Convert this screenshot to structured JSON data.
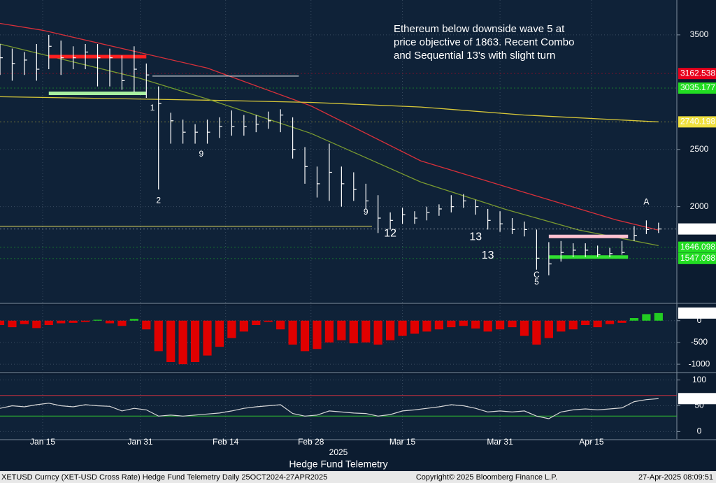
{
  "chart_data": [
    {
      "type": "ohlc",
      "annotation": [
        "Ethereum below downside wave 5 at",
        "price objective of 1863.  Recent Combo",
        "and Sequential 13's with slight turn"
      ],
      "xlim": [
        "2025-01-08",
        "2025-04-29"
      ],
      "xticks": [
        {
          "value": "2025-01-15",
          "label": "Jan 15"
        },
        {
          "value": "2025-01-31",
          "label": "Jan 31"
        },
        {
          "value": "2025-02-14",
          "label": "Feb 14"
        },
        {
          "value": "2025-02-28",
          "label": "Feb 28"
        },
        {
          "value": "2025-03-15",
          "label": "Mar 15"
        },
        {
          "value": "2025-03-31",
          "label": "Mar 31"
        },
        {
          "value": "2025-04-15",
          "label": "Apr 15"
        }
      ],
      "year_label": "2025",
      "x_title": "Hedge Fund Telemetry",
      "ylim": [
        1180,
        3780
      ],
      "yticks": [
        3500,
        2500,
        2000
      ],
      "color": "#ffffff",
      "x": [
        "2025-01-08",
        "2025-01-10",
        "2025-01-12",
        "2025-01-14",
        "2025-01-16",
        "2025-01-18",
        "2025-01-20",
        "2025-01-22",
        "2025-01-24",
        "2025-01-26",
        "2025-01-28",
        "2025-01-30",
        "2025-02-01",
        "2025-02-03",
        "2025-02-05",
        "2025-02-07",
        "2025-02-09",
        "2025-02-11",
        "2025-02-13",
        "2025-02-15",
        "2025-02-17",
        "2025-02-19",
        "2025-02-21",
        "2025-02-23",
        "2025-02-25",
        "2025-02-27",
        "2025-03-01",
        "2025-03-03",
        "2025-03-05",
        "2025-03-07",
        "2025-03-09",
        "2025-03-11",
        "2025-03-13",
        "2025-03-15",
        "2025-03-17",
        "2025-03-19",
        "2025-03-21",
        "2025-03-23",
        "2025-03-25",
        "2025-03-27",
        "2025-03-29",
        "2025-03-31",
        "2025-04-02",
        "2025-04-04",
        "2025-04-06",
        "2025-04-08",
        "2025-04-10",
        "2025-04-12",
        "2025-04-14",
        "2025-04-16",
        "2025-04-18",
        "2025-04-20",
        "2025-04-22",
        "2025-04-24",
        "2025-04-26"
      ],
      "high": [
        3420,
        3380,
        3350,
        3420,
        3500,
        3450,
        3400,
        3420,
        3420,
        3380,
        3320,
        3400,
        3250,
        3050,
        2820,
        2760,
        2720,
        2760,
        2780,
        2840,
        2800,
        2800,
        2830,
        2850,
        2780,
        2520,
        2350,
        2550,
        2350,
        2300,
        2200,
        2100,
        1950,
        1990,
        1960,
        2000,
        2020,
        2100,
        2110,
        2060,
        1980,
        1960,
        1900,
        1870,
        1800,
        1690,
        1700,
        1680,
        1680,
        1660,
        1640,
        1700,
        1830,
        1880,
        1860
      ],
      "low": [
        3150,
        3100,
        3150,
        3100,
        3200,
        3150,
        3200,
        3200,
        3050,
        3050,
        3020,
        3000,
        2950,
        2150,
        2550,
        2550,
        2550,
        2550,
        2600,
        2620,
        2620,
        2650,
        2680,
        2650,
        2420,
        2200,
        2080,
        2050,
        2000,
        2050,
        1980,
        1770,
        1800,
        1850,
        1850,
        1880,
        1920,
        1950,
        1990,
        1930,
        1800,
        1780,
        1760,
        1740,
        1450,
        1400,
        1520,
        1560,
        1560,
        1560,
        1560,
        1580,
        1700,
        1760,
        1770
      ],
      "close": [
        3300,
        3250,
        3280,
        3200,
        3400,
        3300,
        3300,
        3350,
        3300,
        3300,
        3100,
        3200,
        3150,
        2900,
        2750,
        2650,
        2650,
        2650,
        2700,
        2700,
        2700,
        2720,
        2750,
        2800,
        2500,
        2350,
        2200,
        2300,
        2200,
        2150,
        2050,
        1900,
        1880,
        1930,
        1900,
        1950,
        1980,
        2000,
        2050,
        2000,
        1880,
        1850,
        1800,
        1800,
        1550,
        1500,
        1600,
        1620,
        1620,
        1580,
        1590,
        1600,
        1750,
        1800,
        1805
      ],
      "overlays": [
        {
          "color": "#d8303a",
          "x": [
            "2025-01-08",
            "2025-01-15",
            "2025-02-11",
            "2025-02-28",
            "2025-03-18",
            "2025-04-04",
            "2025-04-19",
            "2025-04-26"
          ],
          "values": [
            3600,
            3540,
            3210,
            2880,
            2400,
            2125,
            1885,
            1795
          ]
        },
        {
          "color": "#d8c838",
          "x": [
            "2025-01-08",
            "2025-02-11",
            "2025-02-28",
            "2025-03-18",
            "2025-04-04",
            "2025-04-26"
          ],
          "values": [
            2960,
            2930,
            2910,
            2870,
            2800,
            2740
          ]
        },
        {
          "color": "#7a9a30",
          "x": [
            "2025-01-08",
            "2025-01-31",
            "2025-02-11",
            "2025-02-28",
            "2025-03-18",
            "2025-04-01",
            "2025-04-13",
            "2025-04-26"
          ],
          "values": [
            3420,
            3120,
            2940,
            2640,
            2215,
            1975,
            1795,
            1660
          ]
        }
      ],
      "bands": [
        {
          "from": "2025-01-16",
          "to": "2025-02-01",
          "price": 3310,
          "color": "#ff2020",
          "width": 5
        },
        {
          "from": "2025-01-16",
          "to": "2025-02-01",
          "price": 2990,
          "color": "#a8f0a0",
          "width": 5
        },
        {
          "from": "2025-02-02",
          "to": "2025-02-26",
          "price": 3140,
          "color": "#ffffff",
          "width": 1
        },
        {
          "from": "2025-01-08",
          "to": "2025-03-10",
          "price": 1830,
          "color": "#e8e060",
          "width": 1
        },
        {
          "from": "2025-04-08",
          "to": "2025-04-21",
          "price": 1740,
          "color": "#ffc0d0",
          "width": 5
        },
        {
          "from": "2025-04-08",
          "to": "2025-04-21",
          "price": 1560,
          "color": "#30e030",
          "width": 5
        }
      ],
      "levels": [
        {
          "value": 3162.538,
          "color": "#e8001c"
        },
        {
          "value": 3035.177,
          "color": "#22dd22"
        },
        {
          "value": 2740.198,
          "color": "#f0e040"
        },
        {
          "value": 1805.05,
          "label": "1805.050",
          "color": "#ffffff"
        },
        {
          "value": 1646.098,
          "color": "#22dd22"
        },
        {
          "value": 1547.098,
          "color": "#22dd22"
        }
      ],
      "counts": [
        {
          "text": "1",
          "date": "2025-02-02",
          "price": 2860,
          "color": "#22cc22"
        },
        {
          "text": "9",
          "date": "2025-02-10",
          "price": 2458,
          "color": "#22cc22"
        },
        {
          "text": "2",
          "date": "2025-02-03",
          "price": 2050,
          "color": "#22cc22"
        },
        {
          "text": "9",
          "date": "2025-03-09",
          "price": 1950,
          "color": "#e02020"
        },
        {
          "text": "12",
          "date": "2025-03-13",
          "price": 1765,
          "color": "#e040e0"
        },
        {
          "text": "13",
          "date": "2025-03-27",
          "price": 1735,
          "color": "#e040e0"
        },
        {
          "text": "13",
          "date": "2025-03-29",
          "price": 1572,
          "color": "#e040e0"
        },
        {
          "text": "C",
          "date": "2025-04-06",
          "price": 1400,
          "color": "#20b0e0"
        },
        {
          "text": "5",
          "date": "2025-04-06",
          "price": 1340,
          "color": "#f0e040"
        },
        {
          "text": "A",
          "date": "2025-04-24",
          "price": 2040,
          "color": "#f0e040"
        }
      ]
    },
    {
      "type": "bar",
      "ylim": [
        -1143,
        333
      ],
      "yticks": [
        0,
        -500,
        -1000
      ],
      "colors": {
        "positive": "#22cc22",
        "negative": "#e00000"
      },
      "x": [
        "2025-01-08",
        "2025-01-10",
        "2025-01-12",
        "2025-01-14",
        "2025-01-16",
        "2025-01-18",
        "2025-01-20",
        "2025-01-22",
        "2025-01-24",
        "2025-01-26",
        "2025-01-28",
        "2025-01-30",
        "2025-02-01",
        "2025-02-03",
        "2025-02-05",
        "2025-02-07",
        "2025-02-09",
        "2025-02-11",
        "2025-02-13",
        "2025-02-15",
        "2025-02-17",
        "2025-02-19",
        "2025-02-21",
        "2025-02-23",
        "2025-02-25",
        "2025-02-27",
        "2025-03-01",
        "2025-03-03",
        "2025-03-05",
        "2025-03-07",
        "2025-03-09",
        "2025-03-11",
        "2025-03-13",
        "2025-03-15",
        "2025-03-17",
        "2025-03-19",
        "2025-03-21",
        "2025-03-23",
        "2025-03-25",
        "2025-03-27",
        "2025-03-29",
        "2025-03-31",
        "2025-04-02",
        "2025-04-04",
        "2025-04-06",
        "2025-04-08",
        "2025-04-10",
        "2025-04-12",
        "2025-04-14",
        "2025-04-16",
        "2025-04-18",
        "2025-04-20",
        "2025-04-22",
        "2025-04-24",
        "2025-04-26"
      ],
      "values": [
        -100,
        -150,
        -80,
        -170,
        -100,
        -60,
        -50,
        -30,
        20,
        -60,
        -120,
        40,
        -200,
        -700,
        -950,
        -1000,
        -950,
        -800,
        -600,
        -400,
        -250,
        -100,
        -30,
        -200,
        -550,
        -700,
        -650,
        -500,
        -450,
        -520,
        -500,
        -550,
        -450,
        -350,
        -300,
        -250,
        -200,
        -150,
        -120,
        -180,
        -250,
        -200,
        -150,
        -350,
        -550,
        -400,
        -250,
        -200,
        -100,
        -150,
        -80,
        -50,
        60,
        150,
        174.4595
      ]
    },
    {
      "type": "line",
      "ylim": [
        -13,
        109
      ],
      "yticks": [
        100,
        50,
        0
      ],
      "color": "#d8d8d8",
      "bands": [
        {
          "value": 70,
          "color": "#c83040"
        },
        {
          "value": 30,
          "color": "#30c030"
        }
      ],
      "x": [
        "2025-01-08",
        "2025-01-10",
        "2025-01-12",
        "2025-01-14",
        "2025-01-16",
        "2025-01-18",
        "2025-01-20",
        "2025-01-22",
        "2025-01-24",
        "2025-01-26",
        "2025-01-28",
        "2025-01-30",
        "2025-02-01",
        "2025-02-03",
        "2025-02-05",
        "2025-02-07",
        "2025-02-09",
        "2025-02-11",
        "2025-02-13",
        "2025-02-15",
        "2025-02-17",
        "2025-02-19",
        "2025-02-21",
        "2025-02-23",
        "2025-02-25",
        "2025-02-27",
        "2025-03-01",
        "2025-03-03",
        "2025-03-05",
        "2025-03-07",
        "2025-03-09",
        "2025-03-11",
        "2025-03-13",
        "2025-03-15",
        "2025-03-17",
        "2025-03-19",
        "2025-03-21",
        "2025-03-23",
        "2025-03-25",
        "2025-03-27",
        "2025-03-29",
        "2025-03-31",
        "2025-04-02",
        "2025-04-04",
        "2025-04-06",
        "2025-04-08",
        "2025-04-10",
        "2025-04-12",
        "2025-04-14",
        "2025-04-16",
        "2025-04-18",
        "2025-04-20",
        "2025-04-22",
        "2025-04-24",
        "2025-04-26"
      ],
      "values": [
        45,
        50,
        48,
        52,
        55,
        50,
        48,
        52,
        50,
        49,
        40,
        45,
        42,
        30,
        32,
        30,
        32,
        34,
        36,
        40,
        45,
        48,
        50,
        52,
        35,
        30,
        32,
        40,
        38,
        36,
        35,
        30,
        33,
        40,
        42,
        45,
        48,
        52,
        50,
        45,
        38,
        40,
        38,
        40,
        30,
        25,
        38,
        42,
        44,
        42,
        44,
        46,
        58,
        62,
        63.8948
      ]
    }
  ],
  "footer": {
    "left": "XETUSD Curncy (XET-USD Cross Rate) Hedge Fund Telemetry  Daily 25OCT2024-27APR2025",
    "center": "Copyright© 2025 Bloomberg Finance L.P.",
    "right": "27-Apr-2025 08:09:51"
  }
}
